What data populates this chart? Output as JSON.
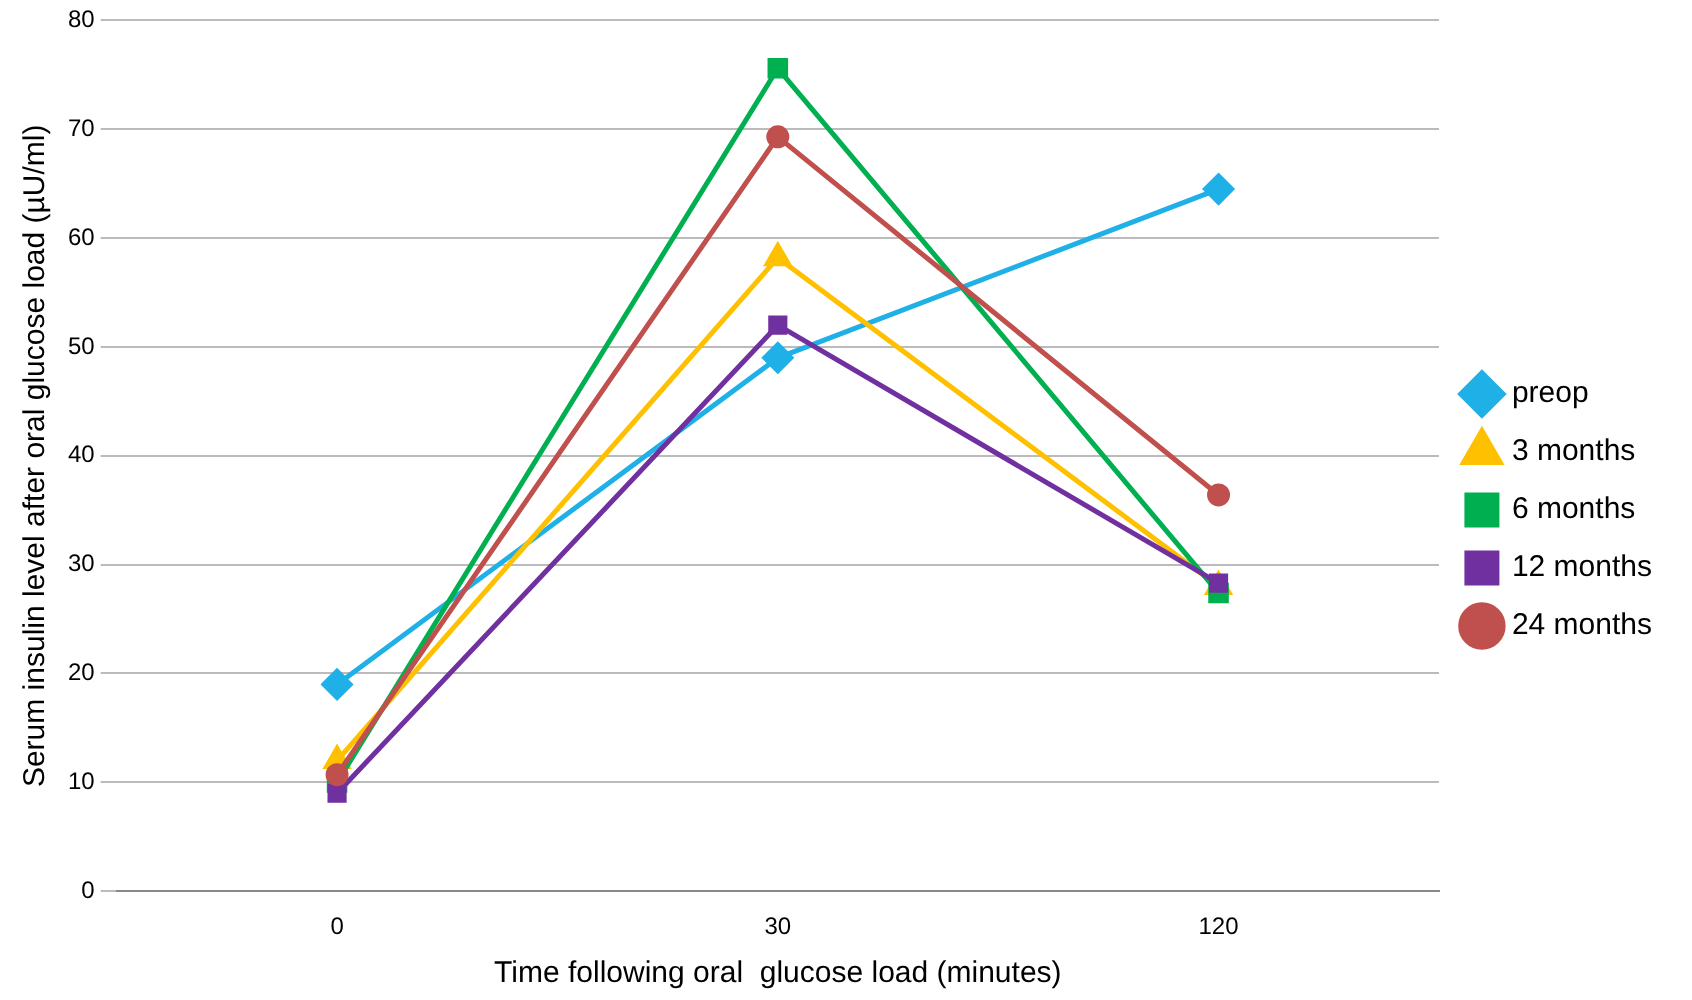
{
  "chart_data": {
    "type": "line",
    "xlabel": "Time following oral  glucose load (minutes)",
    "ylabel": "Serum insulin level after oral glucose load (µU/ml)",
    "categories": [
      "0",
      "30",
      "120"
    ],
    "series": [
      {
        "name": "preop",
        "color": "#1fb0e8",
        "marker": "diamond",
        "values": [
          19,
          49,
          64.5
        ]
      },
      {
        "name": "3 months",
        "color": "#ffc000",
        "marker": "triangle",
        "values": [
          12,
          58.2,
          28
        ]
      },
      {
        "name": "6 months",
        "color": "#00b050",
        "marker": "square",
        "values": [
          10,
          75.6,
          27.4
        ]
      },
      {
        "name": "12 months",
        "color": "#7030a0",
        "marker": "square",
        "values": [
          9,
          52,
          28.3
        ]
      },
      {
        "name": "24 months",
        "color": "#c0504d",
        "marker": "circle",
        "values": [
          10.7,
          69.3,
          36.4
        ]
      }
    ],
    "ylim": [
      0,
      80
    ],
    "yticks": [
      0,
      10,
      20,
      30,
      40,
      50,
      60,
      70,
      80
    ],
    "grid": "y",
    "legend": "right"
  }
}
